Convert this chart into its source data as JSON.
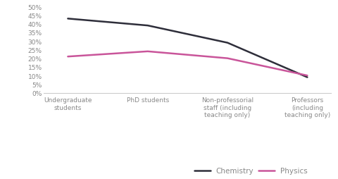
{
  "categories": [
    "Undergraduate\nstudents",
    "PhD students",
    "Non-professorial\nstaff (including\nteaching only)",
    "Professors\n(including\nteaching only)"
  ],
  "chemistry_values": [
    0.43,
    0.39,
    0.29,
    0.09
  ],
  "physics_values": [
    0.21,
    0.24,
    0.2,
    0.1
  ],
  "chemistry_color": "#2e2e3a",
  "physics_color": "#c9559a",
  "ylim": [
    0,
    0.5
  ],
  "yticks": [
    0,
    0.05,
    0.1,
    0.15,
    0.2,
    0.25,
    0.3,
    0.35,
    0.4,
    0.45,
    0.5
  ],
  "legend_labels": [
    "Chemistry",
    "Physics"
  ],
  "line_width": 1.8,
  "background_color": "#ffffff",
  "tick_color": "#aaaaaa",
  "label_color": "#888888"
}
